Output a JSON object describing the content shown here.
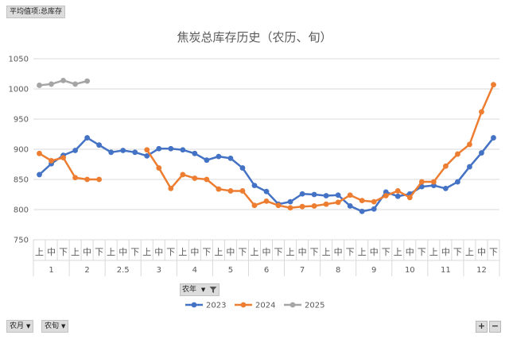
{
  "pivot": {
    "value_field": "平均值项:总库存",
    "filters": [
      {
        "label": "农月",
        "arrow": "▼"
      },
      {
        "label": "农旬",
        "arrow": "▼"
      }
    ],
    "series_field": "农年",
    "zoom_in": "+",
    "zoom_out": "−"
  },
  "colors": {
    "2023": "#4472C4",
    "2024": "#ED7D31",
    "2025": "#A5A5A5"
  },
  "chart_data": {
    "type": "line",
    "title": "焦炭总库存历史（农历、旬）",
    "ylim": [
      750,
      1050
    ],
    "yticks": [
      750,
      800,
      850,
      900,
      950,
      1000,
      1050
    ],
    "grid": true,
    "legend_position": "bottom",
    "groups": [
      {
        "label": "1",
        "subs": [
          "上",
          "中",
          "下"
        ]
      },
      {
        "label": "2",
        "subs": [
          "上",
          "中",
          "下"
        ]
      },
      {
        "label": "2.5",
        "subs": [
          "上",
          "中",
          "下"
        ]
      },
      {
        "label": "3",
        "subs": [
          "上",
          "中",
          "下"
        ]
      },
      {
        "label": "4",
        "subs": [
          "上",
          "中",
          "下"
        ]
      },
      {
        "label": "5",
        "subs": [
          "上",
          "中",
          "下"
        ]
      },
      {
        "label": "6",
        "subs": [
          "上",
          "中",
          "下"
        ]
      },
      {
        "label": "7",
        "subs": [
          "上",
          "中",
          "下"
        ]
      },
      {
        "label": "8",
        "subs": [
          "上",
          "中",
          "下"
        ]
      },
      {
        "label": "9",
        "subs": [
          "上",
          "中",
          "下"
        ]
      },
      {
        "label": "10",
        "subs": [
          "上",
          "中",
          "下"
        ]
      },
      {
        "label": "11",
        "subs": [
          "上",
          "中",
          "下"
        ]
      },
      {
        "label": "12",
        "subs": [
          "上",
          "中",
          "下"
        ]
      }
    ],
    "series": [
      {
        "name": "2023",
        "values": [
          858,
          876,
          890,
          898,
          919,
          907,
          895,
          898,
          895,
          889,
          901,
          901,
          899,
          893,
          882,
          888,
          885,
          869,
          840,
          830,
          809,
          813,
          826,
          825,
          823,
          824,
          806,
          797,
          801,
          829,
          822,
          826,
          838,
          840,
          835,
          846,
          871,
          894,
          919
        ]
      },
      {
        "name": "2024",
        "values": [
          893,
          881,
          886,
          853,
          850,
          850,
          null,
          null,
          null,
          899,
          869,
          835,
          858,
          852,
          850,
          834,
          831,
          831,
          807,
          814,
          807,
          803,
          805,
          806,
          809,
          812,
          824,
          815,
          813,
          823,
          831,
          820,
          846,
          846,
          872,
          892,
          908,
          962,
          1007
        ]
      },
      {
        "name": "2025",
        "values": [
          1006,
          1008,
          1014,
          1008,
          1013,
          null,
          null,
          null,
          null,
          null,
          null,
          null,
          null,
          null,
          null,
          null,
          null,
          null,
          null,
          null,
          null,
          null,
          null,
          null,
          null,
          null,
          null,
          null,
          null,
          null,
          null,
          null,
          null,
          null,
          null,
          null,
          null,
          null,
          null
        ]
      }
    ]
  }
}
